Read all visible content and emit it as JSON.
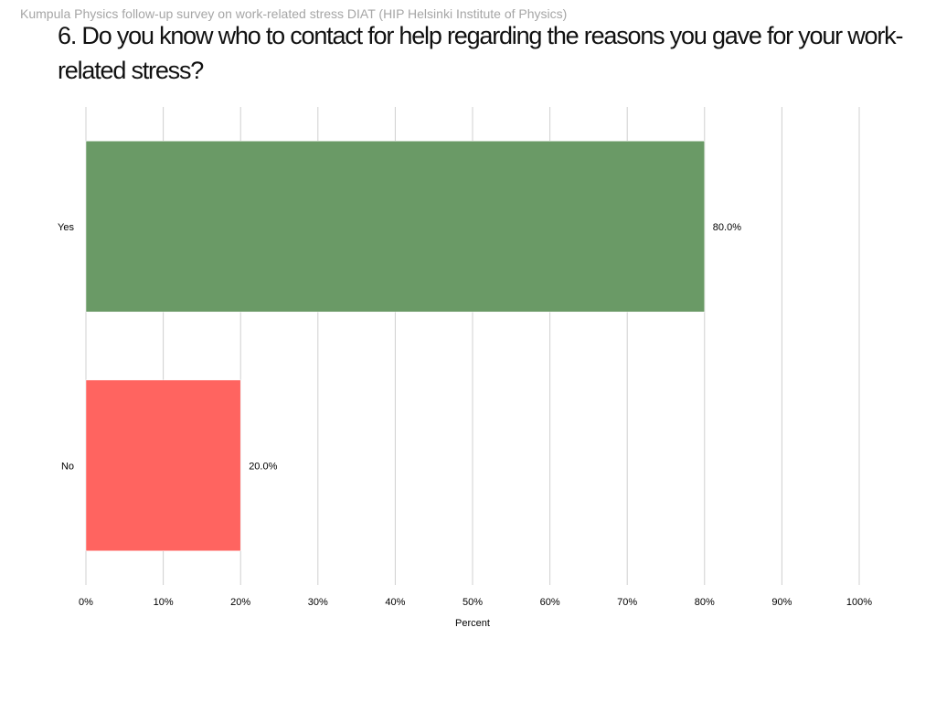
{
  "header": {
    "text": "Kumpula Physics follow-up survey on work-related stress DIAT (HIP  Helsinki Institute of Physics)"
  },
  "chart_data": {
    "type": "bar",
    "orientation": "horizontal",
    "title": "6. Do you know who to contact for help regarding the reasons you gave for your work-related stress?",
    "categories": [
      "Yes",
      "No"
    ],
    "values": [
      80.0,
      20.0
    ],
    "value_labels": [
      "80.0%",
      "20.0%"
    ],
    "colors": [
      "#6a9a66",
      "#ff6460"
    ],
    "xlabel": "Percent",
    "ylabel": "",
    "xlim": [
      0,
      100
    ],
    "xticks": [
      "0%",
      "10%",
      "20%",
      "30%",
      "40%",
      "50%",
      "60%",
      "70%",
      "80%",
      "90%",
      "100%"
    ],
    "grid": true,
    "legend": "none"
  }
}
